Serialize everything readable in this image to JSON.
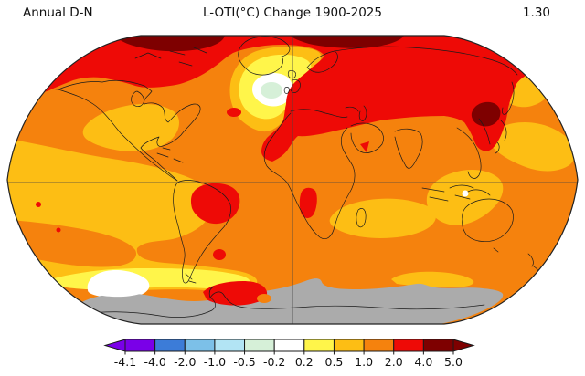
{
  "header": {
    "period_label": "Annual D-N",
    "title": "L-OTI(°C) Change 1900-2025",
    "global_mean": "1.30"
  },
  "chart_data": {
    "type": "heatmap",
    "subtype": "filled-contour world map, Robinson projection, central meridian 0°",
    "title": "L-OTI(°C) Change 1900-2025",
    "period": "Annual D-N",
    "global_mean_value": 1.3,
    "units": "°C",
    "grid": "equator and central meridian lines only",
    "legend": {
      "position": "bottom",
      "orientation": "horizontal",
      "tick_labels": [
        "-4.1",
        "-4.0",
        "-2.0",
        "-1.0",
        "-0.5",
        "-0.2",
        "0.2",
        "0.5",
        "1.0",
        "2.0",
        "4.0",
        "5.0"
      ],
      "colors": [
        "#7a00e8",
        "#3c7cd8",
        "#7cc0e8",
        "#b2e4f4",
        "#d6f0d8",
        "#ffffff",
        "#fff54a",
        "#fdbe14",
        "#f5820d",
        "#ee0a06",
        "#7e0000"
      ],
      "arrow_left_color": "#7a00e8",
      "arrow_right_color": "#7e0000"
    },
    "palette": {
      "purple": "#7a00e8",
      "blue": "#3c7cd8",
      "light_blue": "#7cc0e8",
      "pale_cyan": "#b2e4f4",
      "pale_green": "#d6f0d8",
      "white": "#ffffff",
      "yellow": "#fff54a",
      "amber": "#fdbe14",
      "orange": "#f5820d",
      "red": "#ee0a06",
      "dark_red": "#7e0000",
      "gray_no_data": "#ababab",
      "coastline": "#1b1b1b",
      "grid_line": "#444444",
      "map_border": "#222222"
    },
    "regions": [
      {
        "area": "Arctic rim (Canadian Arctic, Svalbard–Barents, Sea of Okhotsk/Chukotka)",
        "anomaly_c": "4.0 to 5.0+ (dark red)"
      },
      {
        "area": "Arctic Ocean, northern Eurasia/Siberia, Europe, Mediterranean",
        "anomaly_c": "2.0 to 4.0 (red)"
      },
      {
        "area": "Amazon/central Brazil, NW Africa, Arabia spot, Angola coast, South Atlantic spot, Antarctic Peninsula",
        "anomaly_c": "2.0 to 4.0 (red)"
      },
      {
        "area": "Most oceans and remaining continents (mid/low latitudes)",
        "anomaly_c": "1.0 to 2.0 (orange)"
      },
      {
        "area": "Central/SE North America, tropical & South Pacific, Bering & NW Pacific patches, Indian Ocean band, Indonesia, Southern Ocean streaks",
        "anomaly_c": "0.5 to 1.0 (amber)"
      },
      {
        "area": "North Atlantic warming-hole ring, South Pacific sector of Southern Ocean band",
        "anomaly_c": "0.2 to 0.5 (yellow)"
      },
      {
        "area": "North Atlantic warming-hole core south of Greenland, Southern Ocean patch, speck near New Guinea",
        "anomaly_c": "-0.2 to 0.2 (white)"
      },
      {
        "area": "Center of North Atlantic warming hole",
        "anomaly_c": "-0.5 to -0.2 (pale green)"
      },
      {
        "area": "Antarctica and far Southern Ocean",
        "anomaly_c": "no data (gray)"
      }
    ]
  }
}
